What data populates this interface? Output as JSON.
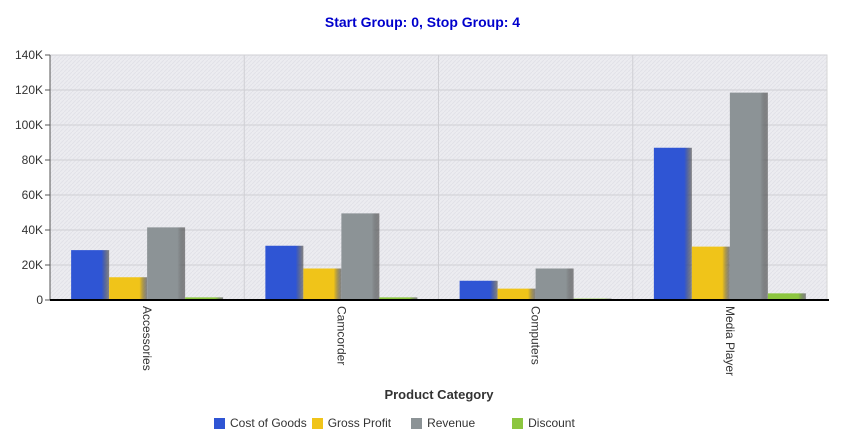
{
  "chart_data": {
    "type": "bar",
    "title": "Start Group: 0, Stop Group: 4",
    "xlabel": "Product Category",
    "ylabel": "",
    "ylim": [
      0,
      140000
    ],
    "yticks": [
      0,
      20000,
      40000,
      60000,
      80000,
      100000,
      120000,
      140000
    ],
    "ytick_labels": [
      "0",
      "20K",
      "40K",
      "60K",
      "80K",
      "100K",
      "120K",
      "140K"
    ],
    "categories": [
      "Accessories",
      "Camcorder",
      "Computers",
      "Media Player"
    ],
    "series": [
      {
        "name": "Cost of Goods",
        "color": "#2f55d4",
        "values": [
          28500,
          31000,
          11000,
          87000
        ]
      },
      {
        "name": "Gross Profit",
        "color": "#f0c419",
        "values": [
          13000,
          18000,
          6500,
          30500
        ]
      },
      {
        "name": "Revenue",
        "color": "#8c9396",
        "values": [
          41500,
          49500,
          18000,
          118500
        ]
      },
      {
        "name": "Discount",
        "color": "#8cc63f",
        "values": [
          1500,
          1500,
          800,
          3800
        ]
      }
    ],
    "grid": true,
    "legend": "bottom"
  }
}
